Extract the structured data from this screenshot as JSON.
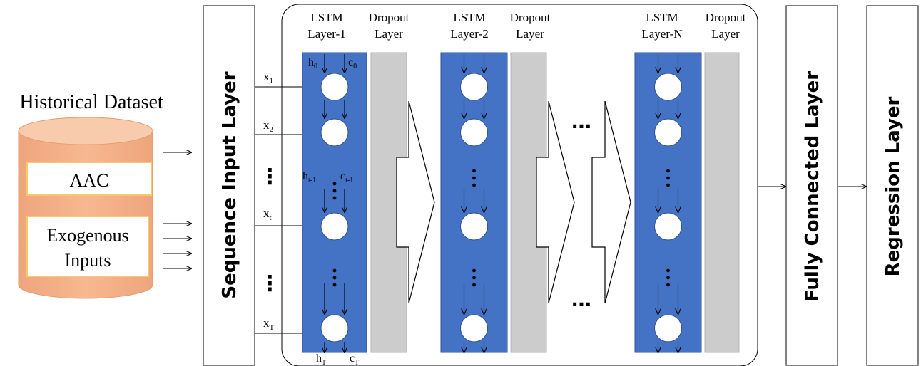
{
  "dataset": {
    "title": "Historical Dataset",
    "aac_label": "AAC",
    "exo_line1": "Exogenous",
    "exo_line2": "Inputs"
  },
  "input_layer": {
    "label": "Sequence Input Layer"
  },
  "inputs": {
    "x1": [
      "x",
      "1"
    ],
    "x2": [
      "x",
      "2"
    ],
    "xt": [
      "x",
      "t"
    ],
    "xT": [
      "x",
      "T"
    ],
    "dots": "⋮"
  },
  "stack": {
    "block1": {
      "lstm": [
        "LSTM",
        "Layer-1"
      ],
      "dropout": [
        "Dropout",
        "Layer"
      ]
    },
    "block2": {
      "lstm": [
        "LSTM",
        "Layer-2"
      ],
      "dropout": [
        "Dropout",
        "Layer"
      ]
    },
    "blockN": {
      "lstm": [
        "LSTM",
        "Layer-N"
      ],
      "dropout": [
        "Dropout",
        "Layer"
      ]
    },
    "ellipsis": "…",
    "states": {
      "h0": [
        "h",
        "0"
      ],
      "c0": [
        "c",
        "0"
      ],
      "ht1": [
        "h",
        "t-1"
      ],
      "ct1": [
        "c",
        "t-1"
      ],
      "hT": [
        "h",
        "T"
      ],
      "cT": [
        "c",
        "T"
      ]
    }
  },
  "fc_layer": {
    "label": "Fully Connected Layer"
  },
  "regression_layer": {
    "label": "Regression Layer"
  },
  "colors": {
    "lstm_fill": "#4472c4",
    "dropout_fill": "#cccccc",
    "cylinder_fill": "#f4b183",
    "cylinder_top": "#f8cbad",
    "cylinder_edge": "#e39b72",
    "cylinder_box_edge": "#f6c96b"
  }
}
